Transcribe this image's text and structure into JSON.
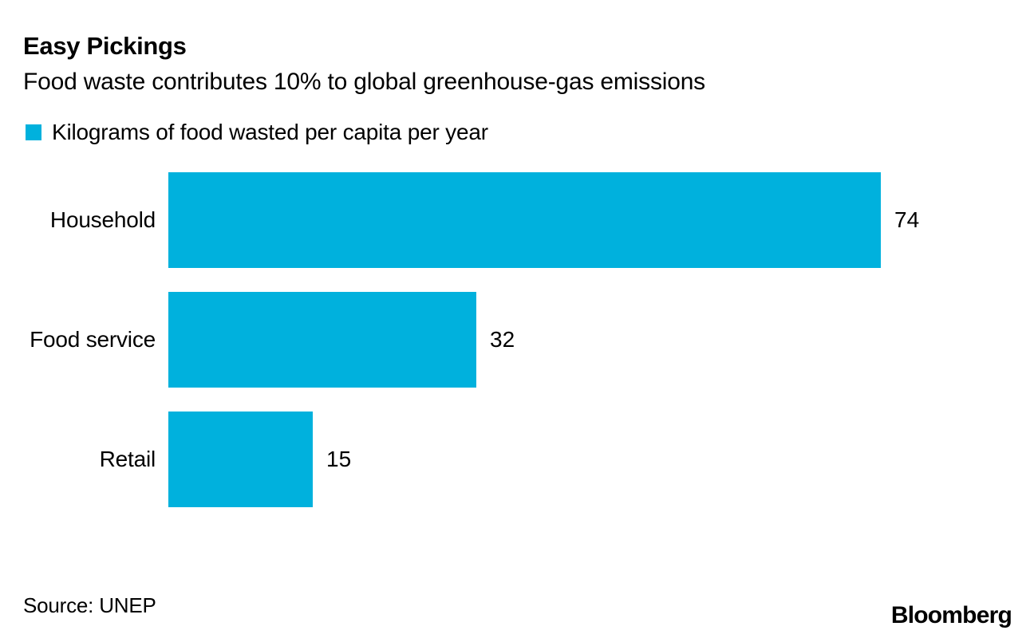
{
  "header": {
    "title": "Easy Pickings",
    "subtitle": "Food waste contributes 10% to global greenhouse-gas emissions"
  },
  "legend": {
    "label": "Kilograms of food wasted per capita per year"
  },
  "chart_data": {
    "type": "bar",
    "orientation": "horizontal",
    "title": "Easy Pickings",
    "subtitle": "Food waste contributes 10% to global greenhouse-gas emissions",
    "series_label": "Kilograms of food wasted per capita per year",
    "categories": [
      "Household",
      "Food service",
      "Retail"
    ],
    "values": [
      74,
      32,
      15
    ],
    "xlim": [
      0,
      74
    ],
    "grid": false,
    "legend_position": "top-left",
    "bar_color": "#00b1dd",
    "value_labels_shown": true
  },
  "footer": {
    "source": "Source: UNEP",
    "brand": "Bloomberg"
  },
  "colors": {
    "accent": "#00b1dd",
    "text": "#000000",
    "background": "#ffffff"
  }
}
